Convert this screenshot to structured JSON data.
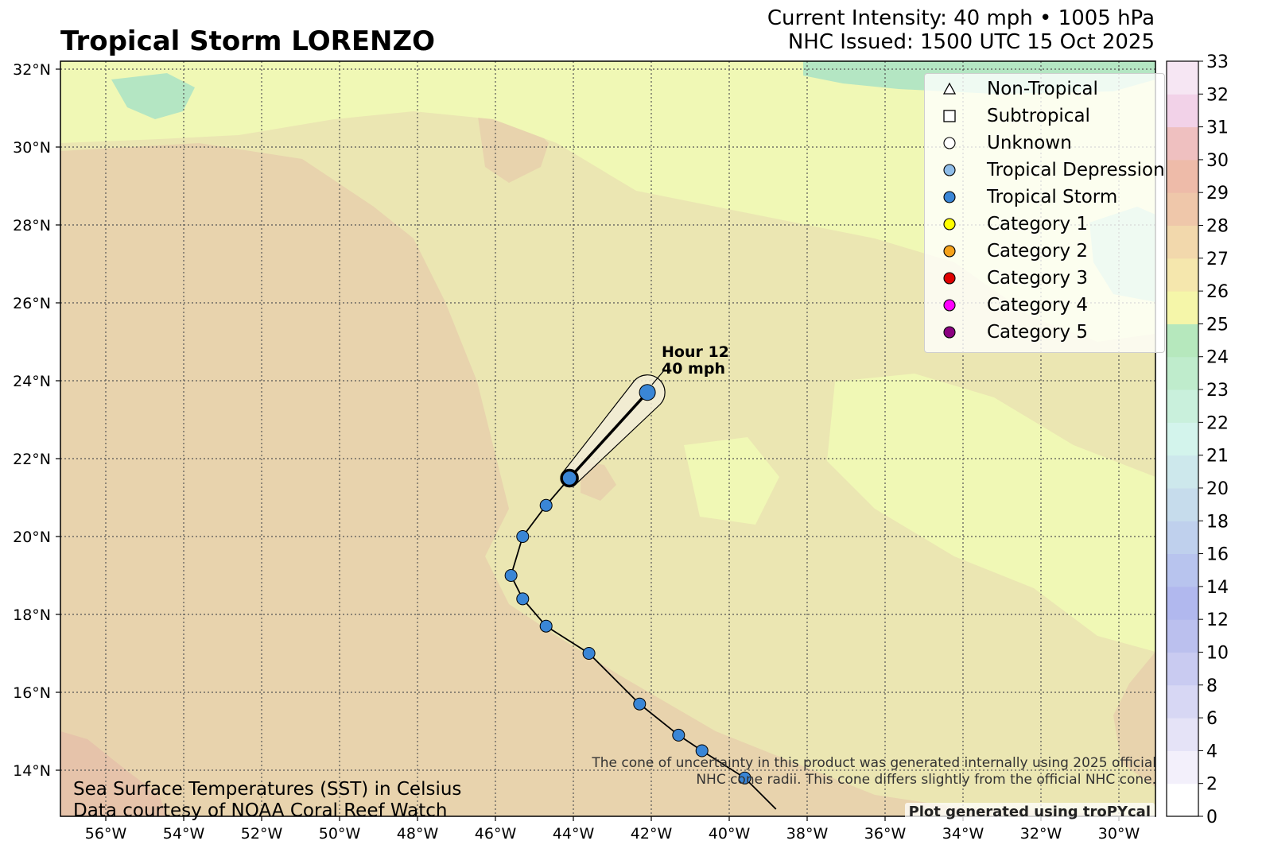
{
  "title": "Tropical Storm LORENZO",
  "intensity": "Current Intensity: 40 mph • 1005 hPa",
  "issued": "NHC Issued: 1500 UTC 15 Oct 2025",
  "lon_ticks": [
    "56°W",
    "54°W",
    "52°W",
    "50°W",
    "48°W",
    "46°W",
    "44°W",
    "42°W",
    "40°W",
    "38°W",
    "36°W",
    "34°W",
    "32°W",
    "30°W"
  ],
  "lat_ticks": [
    "14°N",
    "16°N",
    "18°N",
    "20°N",
    "22°N",
    "24°N",
    "26°N",
    "28°N",
    "30°N",
    "32°N"
  ],
  "colorbar_ticks": [
    "0",
    "2",
    "4",
    "6",
    "8",
    "10",
    "12",
    "14",
    "16",
    "18",
    "20",
    "21",
    "22",
    "23",
    "24",
    "25",
    "26",
    "27",
    "28",
    "29",
    "30",
    "31",
    "32",
    "33"
  ],
  "legend": [
    {
      "label": "Non-Tropical",
      "marker": "triangle",
      "color": "#ffffff"
    },
    {
      "label": "Subtropical",
      "marker": "square",
      "color": "#ffffff"
    },
    {
      "label": "Unknown",
      "marker": "circle",
      "color": "#ffffff"
    },
    {
      "label": "Tropical Depression",
      "marker": "circle",
      "color": "#8fbde8"
    },
    {
      "label": "Tropical Storm",
      "marker": "circle",
      "color": "#3a86d6"
    },
    {
      "label": "Category 1",
      "marker": "circle",
      "color": "#ffff00"
    },
    {
      "label": "Category 2",
      "marker": "circle",
      "color": "#f5a21b"
    },
    {
      "label": "Category 3",
      "marker": "circle",
      "color": "#e00000"
    },
    {
      "label": "Category 4",
      "marker": "circle",
      "color": "#ff00ff"
    },
    {
      "label": "Category 5",
      "marker": "circle",
      "color": "#8b0080"
    }
  ],
  "forecast_label": {
    "hour": "Hour 12",
    "wind": "40 mph"
  },
  "track_points": [
    {
      "lon": -38.8,
      "lat": 13.0
    },
    {
      "lon": -39.6,
      "lat": 13.8
    },
    {
      "lon": -40.7,
      "lat": 14.5
    },
    {
      "lon": -41.3,
      "lat": 14.9
    },
    {
      "lon": -42.3,
      "lat": 15.7
    },
    {
      "lon": -43.6,
      "lat": 17.0
    },
    {
      "lon": -44.7,
      "lat": 17.7
    },
    {
      "lon": -45.3,
      "lat": 18.4
    },
    {
      "lon": -45.6,
      "lat": 19.0
    },
    {
      "lon": -45.3,
      "lat": 20.0
    },
    {
      "lon": -44.7,
      "lat": 20.8
    },
    {
      "lon": -44.1,
      "lat": 21.5
    }
  ],
  "current_position": {
    "lon": -44.1,
    "lat": 21.5
  },
  "forecast_position": {
    "lon": -42.1,
    "lat": 23.7
  },
  "sst_note_1": "Sea Surface Temperatures (SST) in Celsius",
  "sst_note_2": "Data courtesy of NOAA Coral Reef Watch",
  "cone_note_1": "The cone of uncertainty in this product was generated internally using 2025 official",
  "cone_note_2": "NHC cone radii. This cone differs slightly from the official NHC cone.",
  "credit": "Plot generated using troPYcal",
  "colors": {
    "sst_warm": "#e8d3ad",
    "sst_mid": "#ebe6b2",
    "sst_light": "#f0f8b5",
    "sst_cool": "#b4e6c3",
    "track": "#000000",
    "storm": "#3a86d6",
    "cone_fill": "#f2ecd7"
  }
}
